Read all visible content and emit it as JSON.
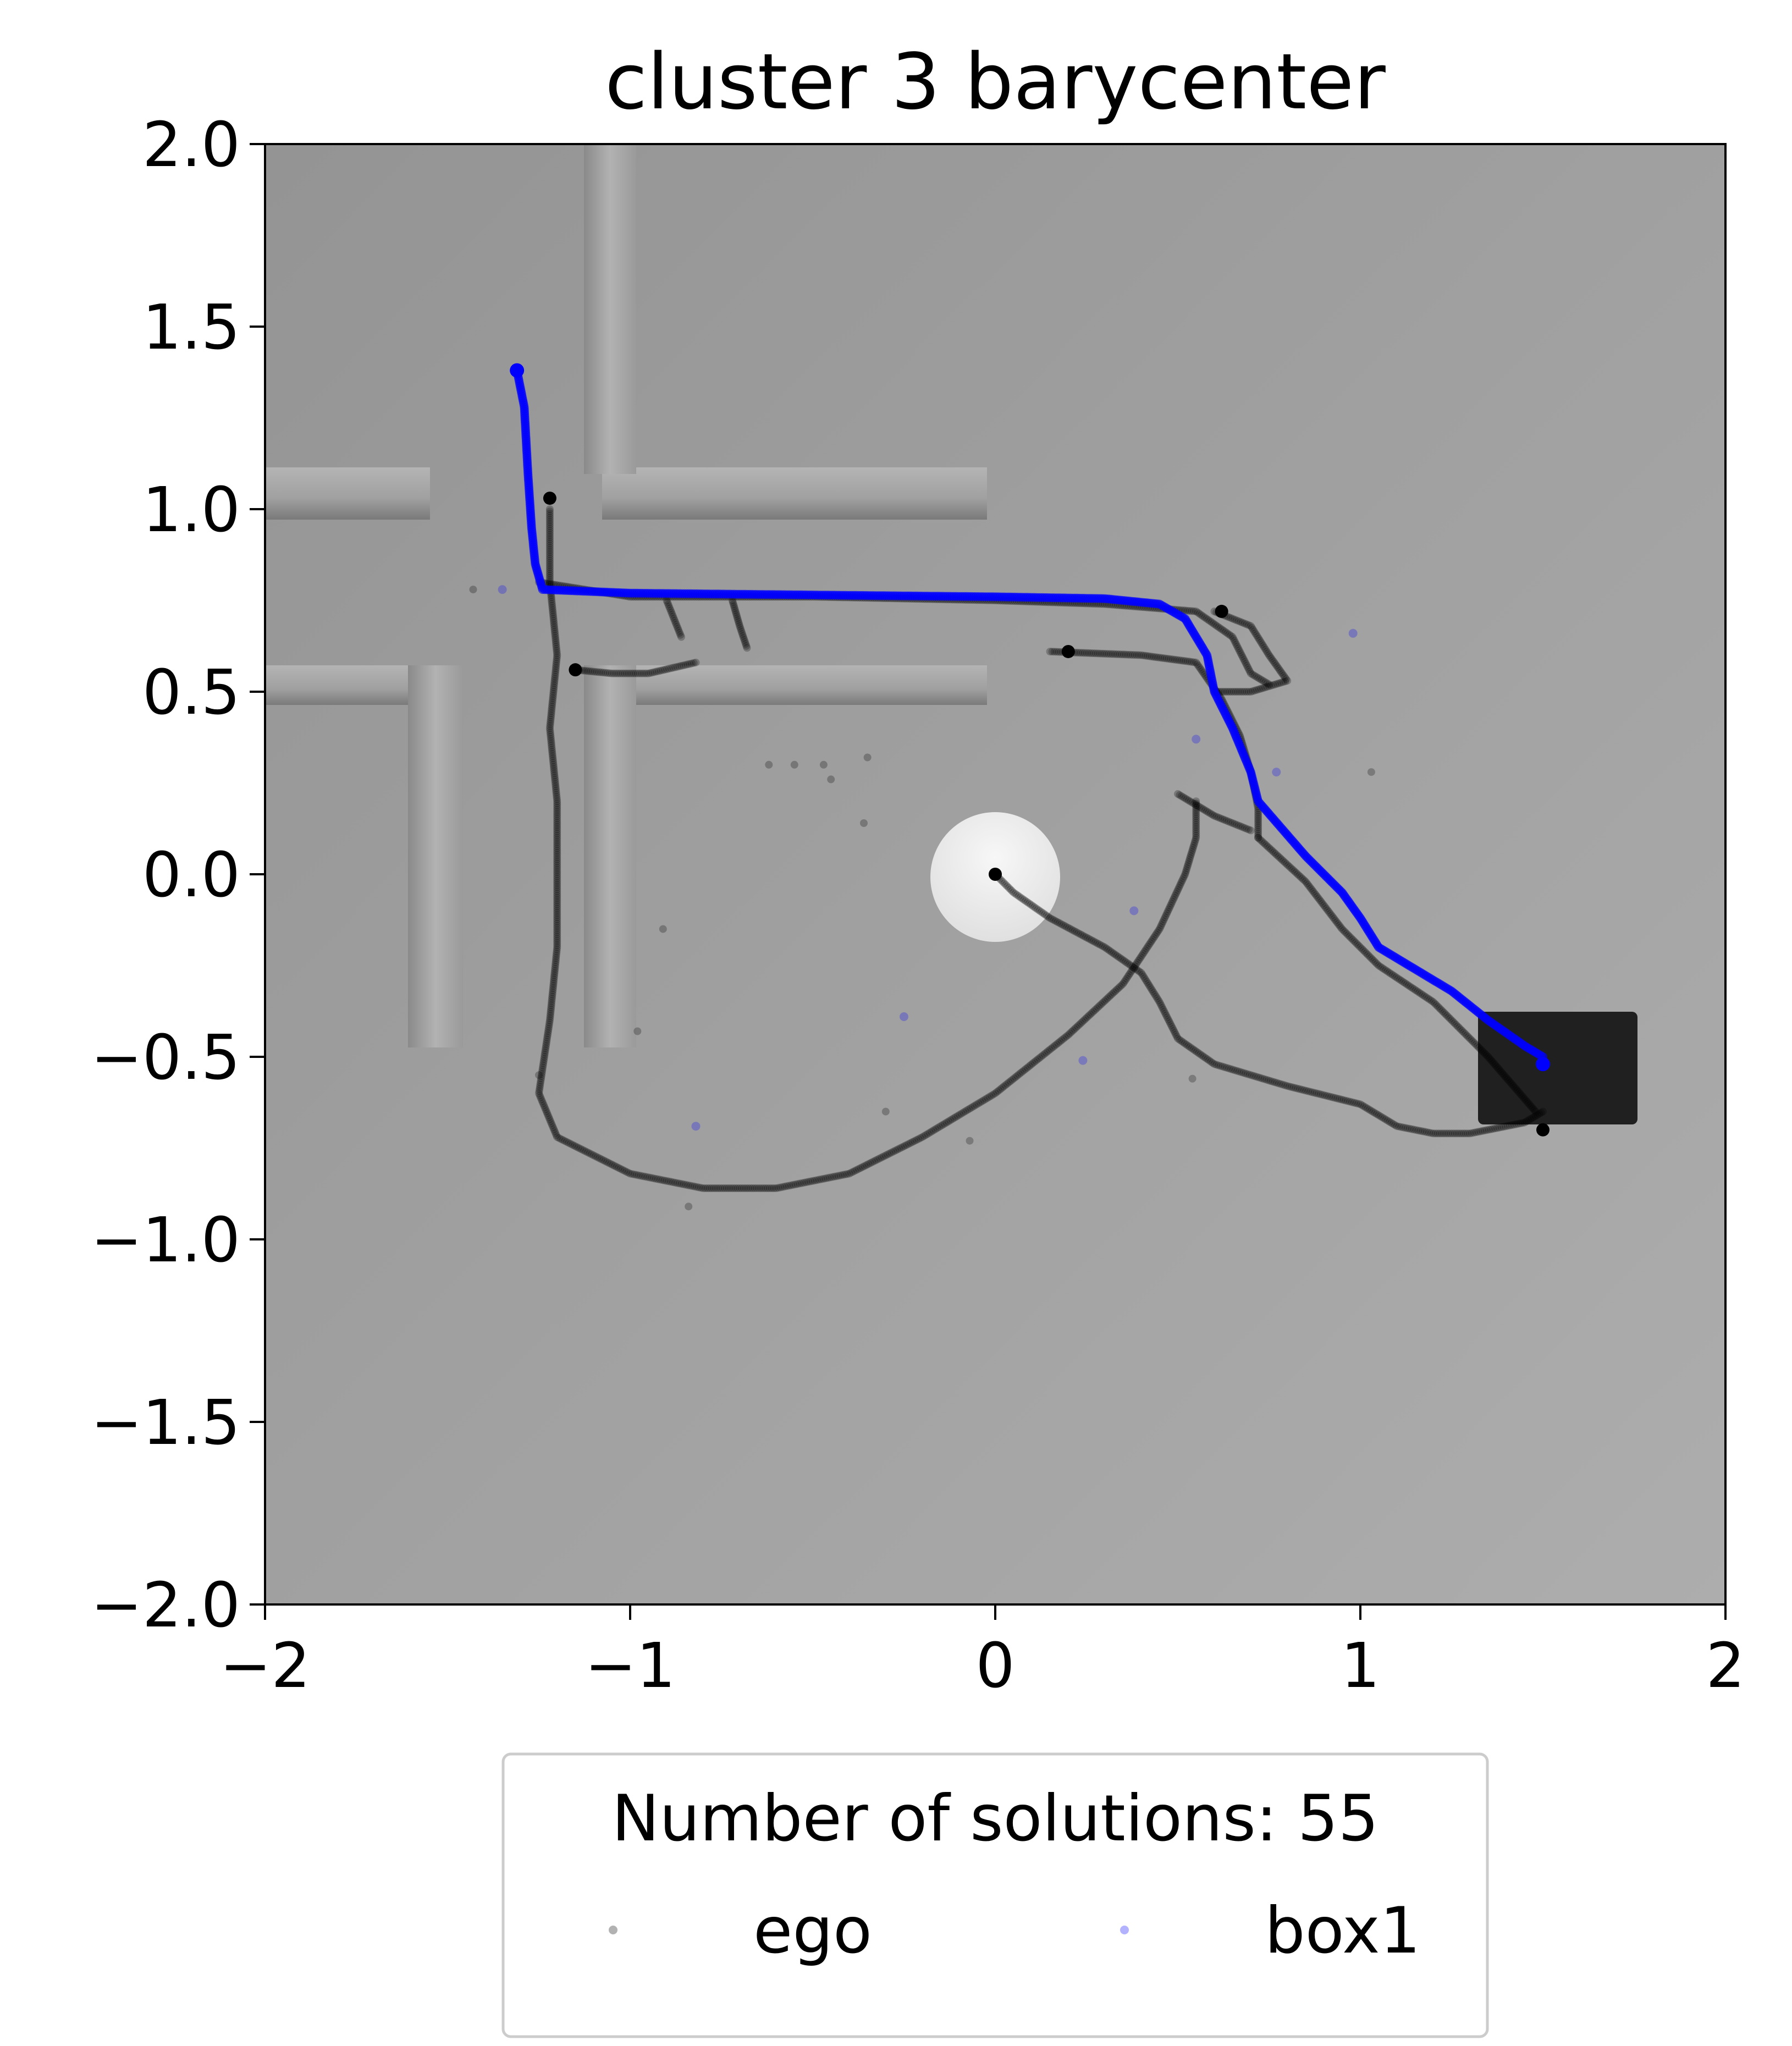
{
  "chart_data": {
    "type": "scatter",
    "title": "cluster 3 barycenter",
    "xlabel": "",
    "ylabel": "",
    "xlim": [
      -2,
      2
    ],
    "ylim": [
      -2,
      2
    ],
    "x_ticks": [
      -2,
      -1,
      0,
      1,
      2
    ],
    "y_ticks": [
      2.0,
      1.5,
      1.0,
      0.5,
      0.0,
      -0.5,
      -1.0,
      -1.5,
      -2.0
    ],
    "x_tick_labels": [
      "−2",
      "−1",
      "0",
      "1",
      "2"
    ],
    "y_tick_labels": [
      "2.0",
      "1.5",
      "1.0",
      "0.5",
      "0.0",
      "−0.5",
      "−1.0",
      "−1.5",
      "−2.0"
    ],
    "grid": false,
    "background_image": "top-down scene render: grey floor, wall segments, white disc robot at origin, dark box at right",
    "legend": {
      "title": "Number of solutions: 55",
      "placement": "below plot, centered",
      "ncol": 2,
      "entries": [
        {
          "label": "ego",
          "color": "#000000"
        },
        {
          "label": "box1",
          "color": "#0000ff"
        }
      ]
    },
    "series": [
      {
        "name": "ego",
        "color": "#000000",
        "alpha": 0.25,
        "paths": [
          [
            [
              0.0,
              0.0
            ],
            [
              0.05,
              -0.05
            ],
            [
              0.15,
              -0.12
            ],
            [
              0.3,
              -0.2
            ],
            [
              0.4,
              -0.27
            ],
            [
              0.45,
              -0.35
            ],
            [
              0.5,
              -0.45
            ],
            [
              0.6,
              -0.52
            ],
            [
              0.8,
              -0.58
            ],
            [
              1.0,
              -0.63
            ],
            [
              1.1,
              -0.69
            ],
            [
              1.2,
              -0.71
            ],
            [
              1.3,
              -0.71
            ],
            [
              1.45,
              -0.68
            ],
            [
              1.5,
              -0.65
            ]
          ],
          [
            [
              -1.22,
              1.0
            ],
            [
              -1.22,
              0.8
            ],
            [
              -1.2,
              0.6
            ],
            [
              -1.22,
              0.4
            ],
            [
              -1.2,
              0.2
            ],
            [
              -1.2,
              0.0
            ],
            [
              -1.2,
              -0.2
            ],
            [
              -1.22,
              -0.4
            ],
            [
              -1.25,
              -0.6
            ],
            [
              -1.2,
              -0.72
            ],
            [
              -1.0,
              -0.82
            ],
            [
              -0.8,
              -0.86
            ],
            [
              -0.6,
              -0.86
            ],
            [
              -0.4,
              -0.82
            ],
            [
              -0.2,
              -0.72
            ],
            [
              0.0,
              -0.6
            ],
            [
              0.2,
              -0.44
            ],
            [
              0.35,
              -0.3
            ],
            [
              0.45,
              -0.15
            ],
            [
              0.52,
              0.0
            ],
            [
              0.55,
              0.1
            ],
            [
              0.55,
              0.2
            ]
          ],
          [
            [
              -1.25,
              0.8
            ],
            [
              -1.0,
              0.76
            ],
            [
              -0.5,
              0.76
            ],
            [
              0.0,
              0.75
            ],
            [
              0.3,
              0.74
            ],
            [
              0.55,
              0.72
            ],
            [
              0.65,
              0.65
            ],
            [
              0.7,
              0.55
            ],
            [
              0.75,
              0.52
            ]
          ],
          [
            [
              0.6,
              0.72
            ],
            [
              0.7,
              0.68
            ],
            [
              0.75,
              0.6
            ],
            [
              0.8,
              0.53
            ],
            [
              0.7,
              0.5
            ],
            [
              0.6,
              0.5
            ]
          ],
          [
            [
              0.15,
              0.61
            ],
            [
              0.4,
              0.6
            ],
            [
              0.55,
              0.58
            ],
            [
              0.62,
              0.48
            ],
            [
              0.67,
              0.38
            ],
            [
              0.7,
              0.28
            ],
            [
              0.72,
              0.18
            ],
            [
              0.72,
              0.1
            ]
          ],
          [
            [
              -1.15,
              0.56
            ],
            [
              -1.05,
              0.55
            ],
            [
              -0.95,
              0.55
            ],
            [
              -0.82,
              0.58
            ]
          ],
          [
            [
              -0.9,
              0.75
            ],
            [
              -0.88,
              0.7
            ],
            [
              -0.86,
              0.65
            ]
          ],
          [
            [
              -0.72,
              0.75
            ],
            [
              -0.7,
              0.68
            ],
            [
              -0.68,
              0.62
            ]
          ],
          [
            [
              0.72,
              0.1
            ],
            [
              0.85,
              -0.02
            ],
            [
              0.95,
              -0.15
            ],
            [
              1.05,
              -0.25
            ],
            [
              1.2,
              -0.35
            ],
            [
              1.35,
              -0.5
            ],
            [
              1.48,
              -0.65
            ]
          ],
          [
            [
              0.5,
              0.22
            ],
            [
              0.6,
              0.16
            ],
            [
              0.7,
              0.12
            ]
          ]
        ],
        "isolated_points": [
          [
            -1.43,
            0.78
          ],
          [
            -0.62,
            0.3
          ],
          [
            -0.55,
            0.3
          ],
          [
            -0.47,
            0.3
          ],
          [
            -0.35,
            0.32
          ],
          [
            -0.45,
            0.26
          ],
          [
            -0.36,
            0.14
          ],
          [
            1.03,
            0.28
          ],
          [
            -0.3,
            -0.65
          ],
          [
            -0.07,
            -0.73
          ],
          [
            -0.84,
            -0.91
          ],
          [
            -0.98,
            -0.43
          ],
          [
            -0.91,
            -0.15
          ],
          [
            0.54,
            -0.56
          ],
          [
            -1.25,
            -0.55
          ]
        ]
      },
      {
        "name": "box1",
        "color": "#0000ff",
        "alpha": 0.6,
        "paths": [
          [
            [
              -1.31,
              1.38
            ],
            [
              -1.29,
              1.28
            ],
            [
              -1.28,
              1.1
            ],
            [
              -1.27,
              0.95
            ],
            [
              -1.26,
              0.85
            ],
            [
              -1.24,
              0.78
            ],
            [
              -1.0,
              0.77
            ],
            [
              -0.5,
              0.765
            ],
            [
              0.0,
              0.76
            ],
            [
              0.3,
              0.755
            ],
            [
              0.45,
              0.74
            ],
            [
              0.52,
              0.7
            ],
            [
              0.58,
              0.6
            ],
            [
              0.6,
              0.5
            ],
            [
              0.65,
              0.4
            ],
            [
              0.7,
              0.28
            ],
            [
              0.72,
              0.2
            ],
            [
              0.85,
              0.05
            ],
            [
              0.95,
              -0.05
            ],
            [
              1.0,
              -0.12
            ],
            [
              1.05,
              -0.2
            ],
            [
              1.15,
              -0.26
            ],
            [
              1.25,
              -0.32
            ],
            [
              1.35,
              -0.4
            ],
            [
              1.45,
              -0.47
            ],
            [
              1.5,
              -0.5
            ]
          ]
        ],
        "isolated_points": [
          [
            -1.35,
            0.78
          ],
          [
            0.98,
            0.66
          ],
          [
            0.55,
            0.37
          ],
          [
            0.77,
            0.28
          ],
          [
            0.38,
            -0.1
          ],
          [
            -0.25,
            -0.39
          ],
          [
            0.24,
            -0.51
          ],
          [
            -0.82,
            -0.69
          ]
        ]
      }
    ]
  }
}
